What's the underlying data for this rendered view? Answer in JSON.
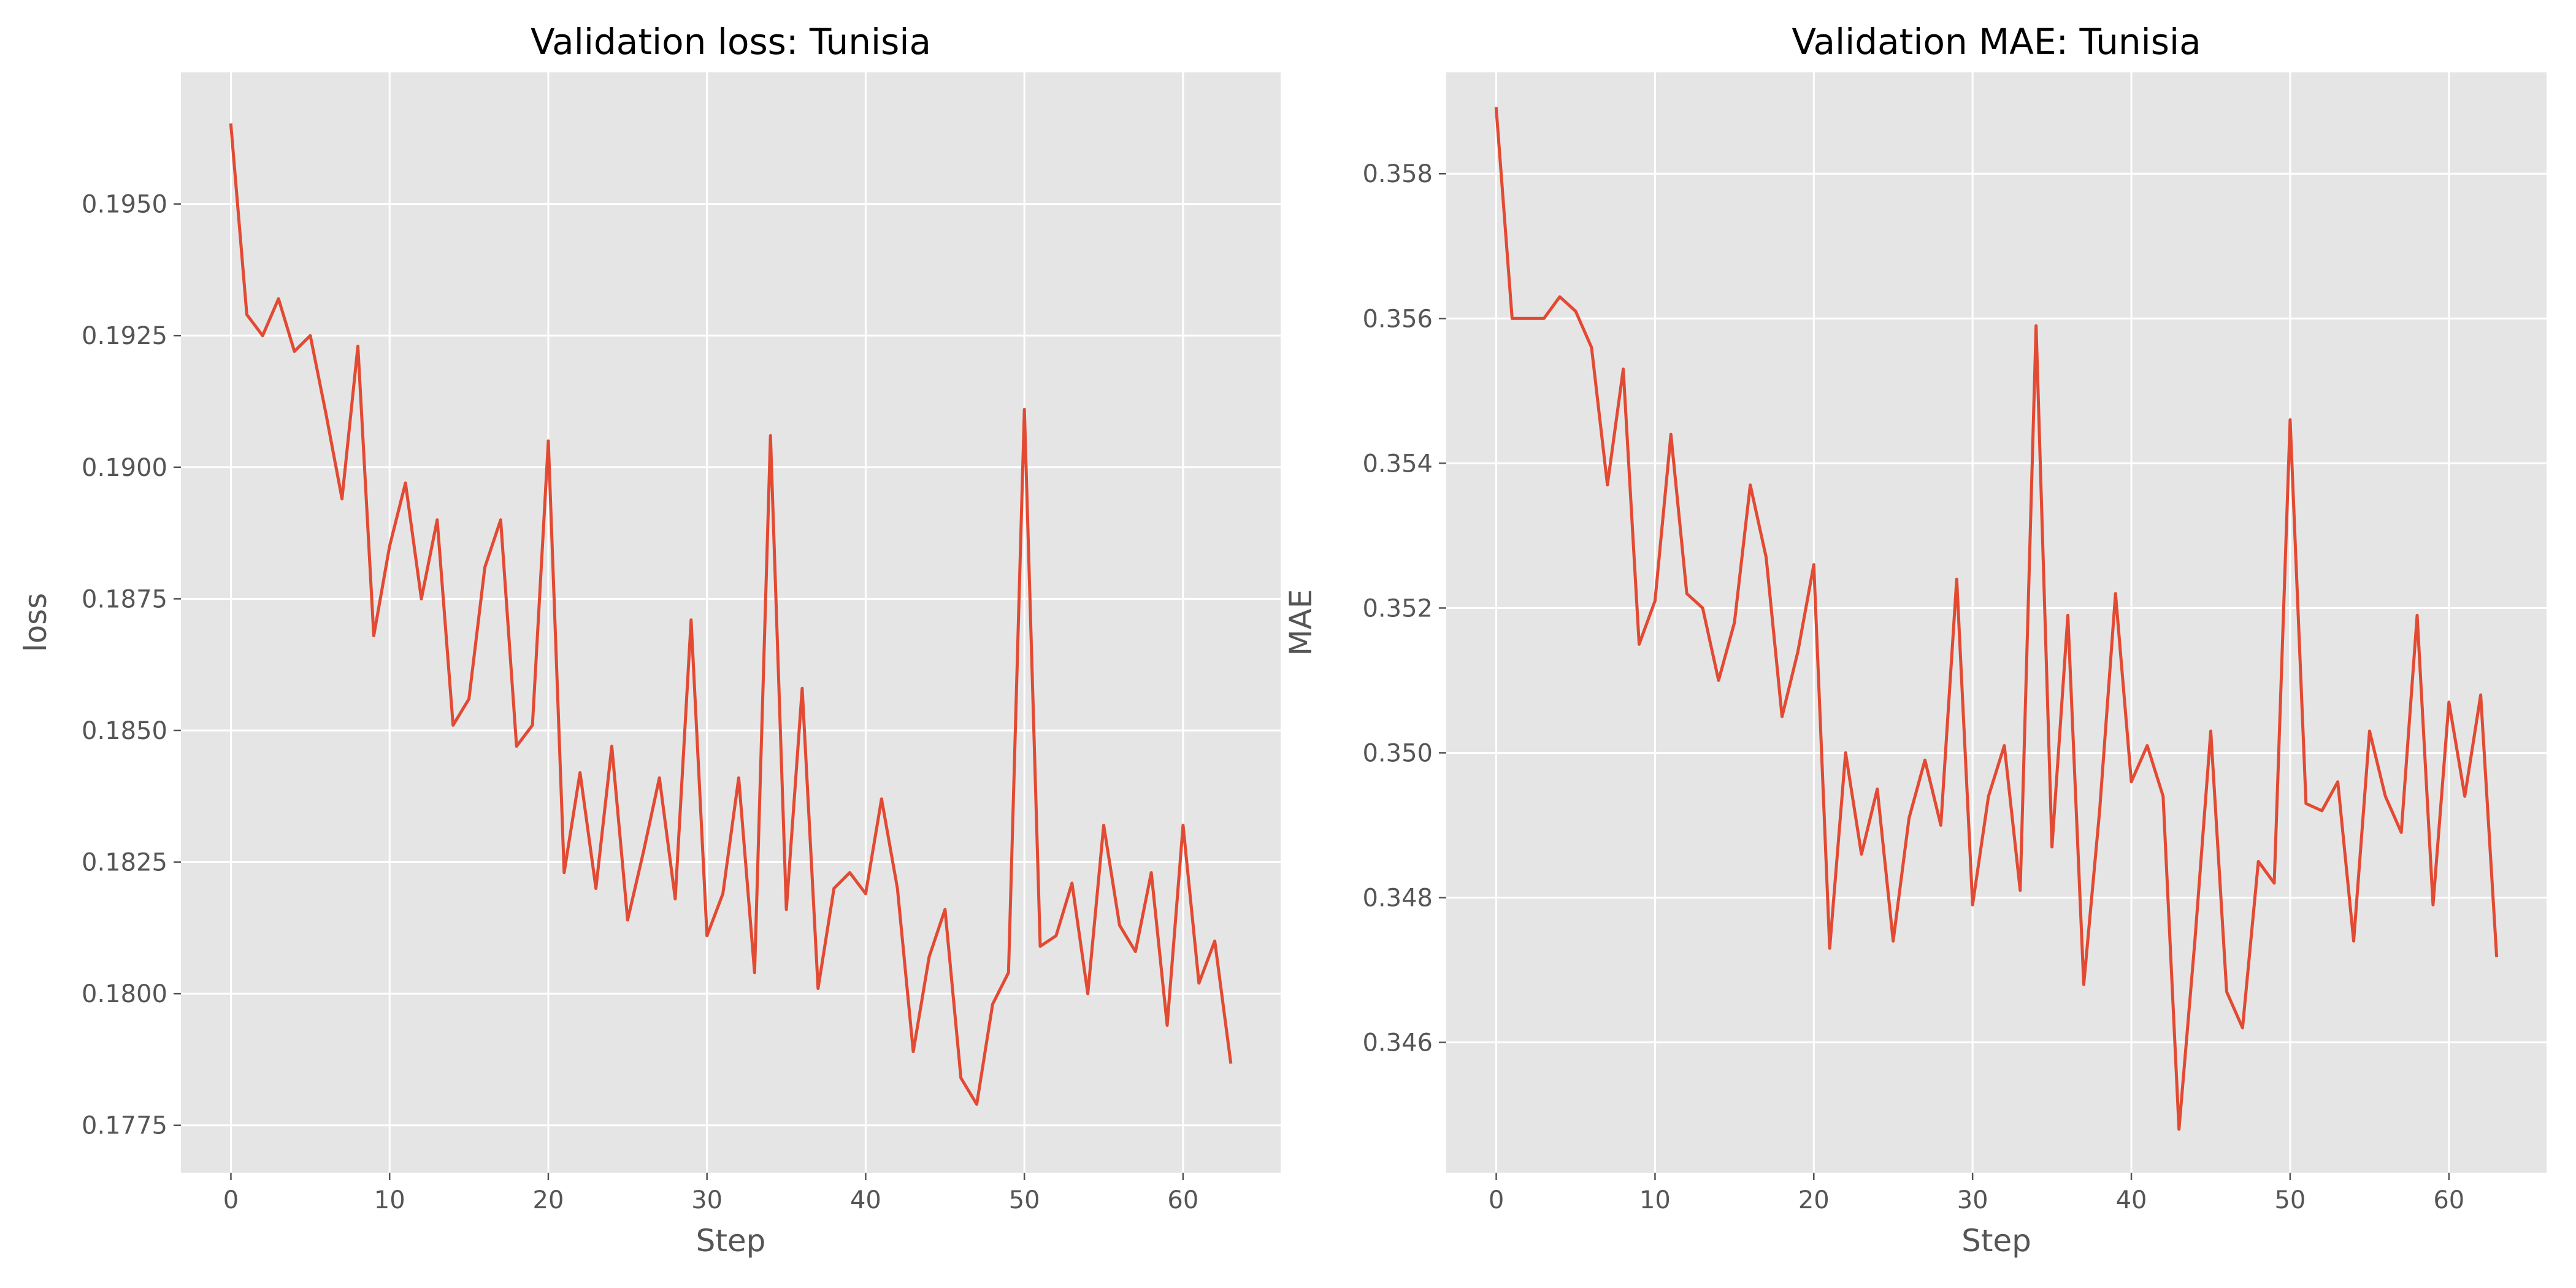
{
  "chart_data": [
    {
      "type": "line",
      "title": "Validation loss: Tunisia",
      "xlabel": "Step",
      "ylabel": "loss",
      "xlim": [
        -3.15,
        66.15
      ],
      "ylim": [
        0.1766,
        0.1975
      ],
      "xticks": [
        0,
        10,
        20,
        30,
        40,
        50,
        60
      ],
      "yticks": [
        0.1775,
        0.18,
        0.1825,
        0.185,
        0.1875,
        0.19,
        0.1925,
        0.195
      ],
      "ytick_labels": [
        "0.1775",
        "0.1800",
        "0.1825",
        "0.1850",
        "0.1875",
        "0.1900",
        "0.1925",
        "0.1950"
      ],
      "grid": true,
      "line_color": "#E24A33",
      "x": [
        0,
        1,
        2,
        3,
        4,
        5,
        6,
        7,
        8,
        9,
        10,
        11,
        12,
        13,
        14,
        15,
        16,
        17,
        18,
        19,
        20,
        21,
        22,
        23,
        24,
        25,
        26,
        27,
        28,
        29,
        30,
        31,
        32,
        33,
        34,
        35,
        36,
        37,
        38,
        39,
        40,
        41,
        42,
        43,
        44,
        45,
        46,
        47,
        48,
        49,
        50,
        51,
        52,
        53,
        54,
        55,
        56,
        57,
        58,
        59,
        60,
        61,
        62,
        63
      ],
      "values": [
        0.1965,
        0.1929,
        0.1925,
        0.1932,
        0.1922,
        0.1925,
        0.191,
        0.1894,
        0.1923,
        0.1868,
        0.1885,
        0.1897,
        0.1875,
        0.189,
        0.1851,
        0.1856,
        0.1881,
        0.189,
        0.1847,
        0.1851,
        0.1905,
        0.1823,
        0.1842,
        0.182,
        0.1847,
        0.1814,
        0.1827,
        0.1841,
        0.1818,
        0.1871,
        0.1811,
        0.1819,
        0.1841,
        0.1804,
        0.1906,
        0.1816,
        0.1858,
        0.1801,
        0.182,
        0.1823,
        0.1819,
        0.1837,
        0.182,
        0.1789,
        0.1807,
        0.1816,
        0.1784,
        0.1779,
        0.1798,
        0.1804,
        0.1911,
        0.1809,
        0.1811,
        0.1821,
        0.18,
        0.1832,
        0.1813,
        0.1808,
        0.1823,
        0.1794,
        0.1832,
        0.1802,
        0.181,
        0.1787
      ]
    },
    {
      "type": "line",
      "title": "Validation MAE: Tunisia",
      "xlabel": "Step",
      "ylabel": "MAE",
      "xlim": [
        -3.15,
        66.15
      ],
      "ylim": [
        0.3442,
        0.3594
      ],
      "xticks": [
        0,
        10,
        20,
        30,
        40,
        50,
        60
      ],
      "yticks": [
        0.346,
        0.348,
        0.35,
        0.352,
        0.354,
        0.356,
        0.358
      ],
      "ytick_labels": [
        "0.346",
        "0.348",
        "0.350",
        "0.352",
        "0.354",
        "0.356",
        "0.358"
      ],
      "grid": true,
      "line_color": "#E24A33",
      "x": [
        0,
        1,
        2,
        3,
        4,
        5,
        6,
        7,
        8,
        9,
        10,
        11,
        12,
        13,
        14,
        15,
        16,
        17,
        18,
        19,
        20,
        21,
        22,
        23,
        24,
        25,
        26,
        27,
        28,
        29,
        30,
        31,
        32,
        33,
        34,
        35,
        36,
        37,
        38,
        39,
        40,
        41,
        42,
        43,
        44,
        45,
        46,
        47,
        48,
        49,
        50,
        51,
        52,
        53,
        54,
        55,
        56,
        57,
        58,
        59,
        60,
        61,
        62,
        63
      ],
      "values": [
        0.3589,
        0.356,
        0.356,
        0.356,
        0.3563,
        0.3561,
        0.3556,
        0.3537,
        0.3553,
        0.3515,
        0.3521,
        0.3544,
        0.3522,
        0.352,
        0.351,
        0.3518,
        0.3537,
        0.3527,
        0.3505,
        0.3514,
        0.3526,
        0.3473,
        0.35,
        0.3486,
        0.3495,
        0.3474,
        0.3491,
        0.3499,
        0.349,
        0.3524,
        0.3479,
        0.3494,
        0.3501,
        0.3481,
        0.3559,
        0.3487,
        0.3519,
        0.3468,
        0.3492,
        0.3522,
        0.3496,
        0.3501,
        0.3494,
        0.3448,
        0.3474,
        0.3503,
        0.3467,
        0.3462,
        0.3485,
        0.3482,
        0.3546,
        0.3493,
        0.3492,
        0.3496,
        0.3474,
        0.3503,
        0.3494,
        0.3489,
        0.3519,
        0.3479,
        0.3507,
        0.3494,
        0.3508,
        0.3472
      ]
    }
  ]
}
